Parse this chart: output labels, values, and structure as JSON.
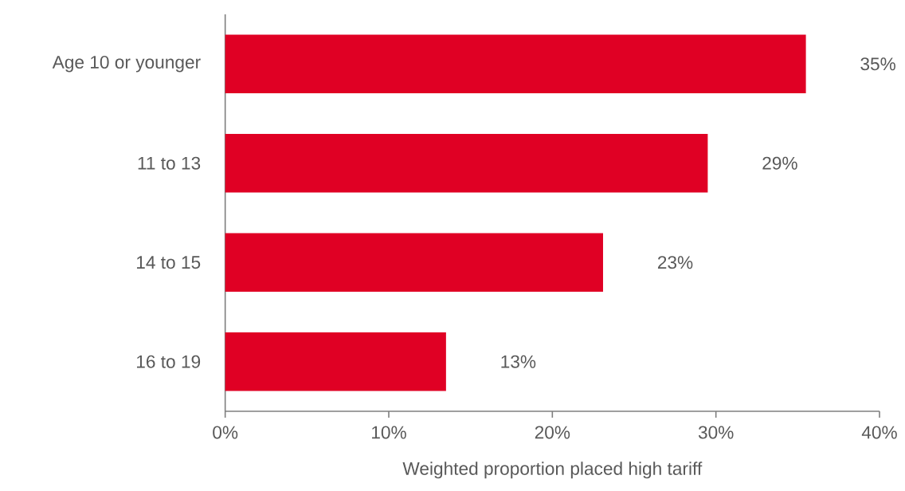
{
  "chart_data": {
    "type": "bar",
    "orientation": "horizontal",
    "xlabel": "Weighted proportion placed high tariff",
    "categories": [
      "Age 10 or younger",
      "11 to 13",
      "14 to 15",
      "16 to 19"
    ],
    "values": [
      35.5,
      29.5,
      23.1,
      13.5
    ],
    "value_labels": [
      "35%",
      "29%",
      "23%",
      "13%"
    ],
    "color": "#e00024",
    "xlim": [
      0,
      40
    ],
    "xticks": [
      {
        "value": 0,
        "label": "0%"
      },
      {
        "value": 10,
        "label": "10%"
      },
      {
        "value": 20,
        "label": "20%"
      },
      {
        "value": 30,
        "label": "30%"
      },
      {
        "value": 40,
        "label": "40%"
      }
    ],
    "grid": false
  }
}
